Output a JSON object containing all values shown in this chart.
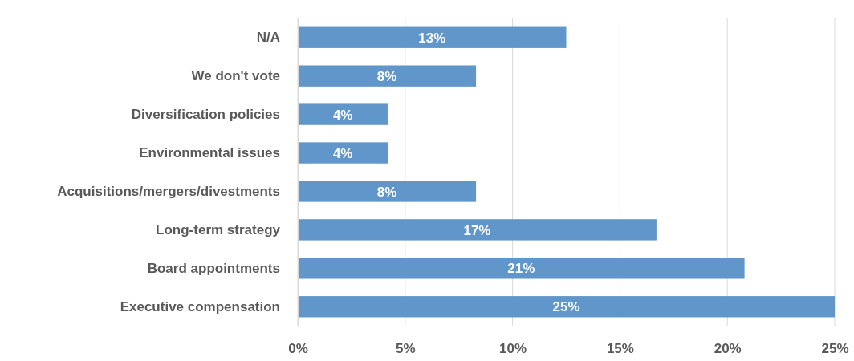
{
  "chart_data": {
    "type": "bar",
    "orientation": "horizontal",
    "categories": [
      "N/A",
      "We don't vote",
      "Diversification policies",
      "Environmental issues",
      "Acquisitions/mergers/divestments",
      "Long-term strategy",
      "Board appointments",
      "Executive compensation"
    ],
    "values": [
      12.5,
      8.3,
      4.2,
      4.2,
      8.3,
      16.7,
      20.8,
      25
    ],
    "value_labels": [
      "13%",
      "8%",
      "4%",
      "4%",
      "8%",
      "17%",
      "21%",
      "25%"
    ],
    "color": "#6096c9",
    "xlim": [
      0,
      25
    ],
    "xticks": [
      {
        "value": 0,
        "label": "0%"
      },
      {
        "value": 5,
        "label": "5%"
      },
      {
        "value": 10,
        "label": "10%"
      },
      {
        "value": 15,
        "label": "15%"
      },
      {
        "value": 20,
        "label": "20%"
      },
      {
        "value": 25,
        "label": "25%"
      }
    ],
    "grid": "x"
  }
}
